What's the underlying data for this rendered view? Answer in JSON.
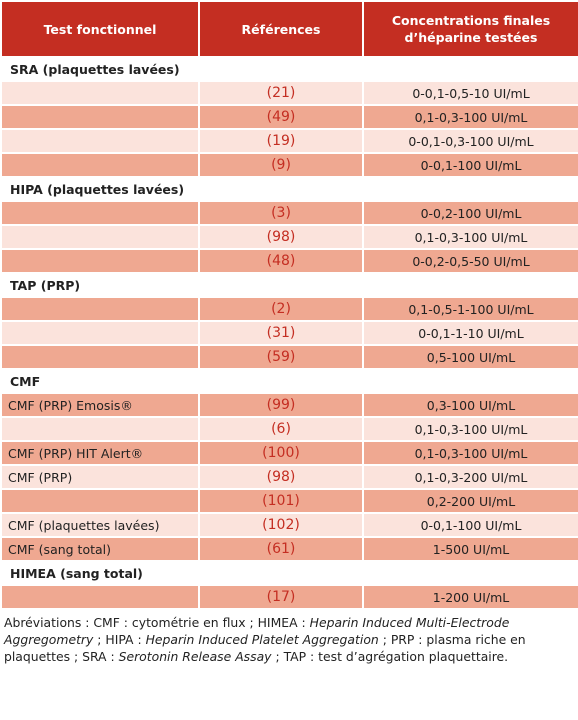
{
  "table": {
    "header": [
      "Test fonctionnel",
      "Références",
      "Concentrations finales d’héparine testées"
    ],
    "sections": [
      {
        "title": "SRA (plaquettes lavées)",
        "rows": [
          {
            "ref": "(21)",
            "conc": "0-0,1-0,5-10 UI/mL"
          },
          {
            "ref": "(49)",
            "conc": "0,1-0,3-100 UI/mL"
          },
          {
            "ref": "(19)",
            "conc": "0-0,1-0,3-100 UI/mL"
          },
          {
            "ref": "(9)",
            "conc": "0-0,1-100 UI/mL"
          }
        ]
      },
      {
        "title": "HIPA (plaquettes lavées)",
        "rows": [
          {
            "ref": "(3)",
            "conc": "0-0,2-100 UI/mL"
          },
          {
            "ref": "(98)",
            "conc": "0,1-0,3-100 UI/mL"
          },
          {
            "ref": "(48)",
            "conc": "0-0,2-0,5-50 UI/mL"
          }
        ]
      },
      {
        "title": "TAP (PRP)",
        "rows": [
          {
            "ref": "(2)",
            "conc": "0,1-0,5-1-100 UI/mL"
          },
          {
            "ref": "(31)",
            "conc": "0-0,1-1-10 UI/mL"
          },
          {
            "ref": "(59)",
            "conc": "0,5-100 UI/mL"
          }
        ]
      },
      {
        "title": "CMF",
        "rows": [
          {
            "test": "CMF (PRP) Emosis®",
            "ref": "(99)",
            "conc": "0,3-100 UI/mL"
          },
          {
            "ref": "(6)",
            "conc": "0,1-0,3-100 UI/mL"
          },
          {
            "test": "CMF (PRP) HIT Alert®",
            "ref": "(100)",
            "conc": "0,1-0,3-100 UI/mL"
          },
          {
            "test": "CMF (PRP)",
            "ref": "(98)",
            "conc": "0,1-0,3-200 UI/mL"
          },
          {
            "ref": "(101)",
            "conc": "0,2-200 UI/mL"
          },
          {
            "test": "CMF (plaquettes lavées)",
            "ref": "(102)",
            "conc": "0-0,1-100 UI/mL"
          },
          {
            "test": "CMF (sang total)",
            "ref": "(61)",
            "conc": "1-500 UI/mL"
          }
        ]
      },
      {
        "title": "HIMEA (sang total)",
        "rows": [
          {
            "ref": "(17)",
            "conc": "1-200 UI/mL"
          }
        ]
      }
    ]
  },
  "footnote": [
    {
      "text": "Abréviations : CMF : cytométrie en flux ; HIMEA : ",
      "italic": false
    },
    {
      "text": "Heparin Induced Multi-Electrode Aggregometry",
      "italic": true
    },
    {
      "text": " ; HIPA : ",
      "italic": false
    },
    {
      "text": "Heparin Induced Platelet Aggregation",
      "italic": true
    },
    {
      "text": " ; PRP : plasma riche en plaquettes ; SRA : ",
      "italic": false
    },
    {
      "text": "Serotonin Release Assay",
      "italic": true
    },
    {
      "text": " ; TAP : test d’agrégation plaquettaire.",
      "italic": false
    }
  ]
}
